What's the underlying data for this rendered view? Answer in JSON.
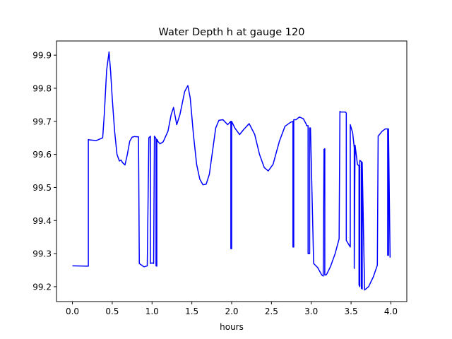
{
  "chart_data": {
    "type": "line",
    "title": "Water Depth h at gauge 120",
    "xlabel": "hours",
    "ylabel": "",
    "xlim": [
      -0.2,
      4.2
    ],
    "ylim": [
      99.155,
      99.943
    ],
    "xticks": [
      0.0,
      0.5,
      1.0,
      1.5,
      2.0,
      2.5,
      3.0,
      3.5,
      4.0
    ],
    "xtick_labels": [
      "0.0",
      "0.5",
      "1.0",
      "1.5",
      "2.0",
      "2.5",
      "3.0",
      "3.5",
      "4.0"
    ],
    "yticks": [
      99.2,
      99.3,
      99.4,
      99.5,
      99.6,
      99.7,
      99.8,
      99.9
    ],
    "ytick_labels": [
      "99.2",
      "99.3",
      "99.4",
      "99.5",
      "99.6",
      "99.7",
      "99.8",
      "99.9"
    ],
    "grid": false,
    "legend": "none",
    "series": [
      {
        "color": "#0000ff",
        "x": [
          0.0,
          0.2,
          0.2,
          0.21,
          0.3,
          0.38,
          0.4,
          0.43,
          0.46,
          0.48,
          0.5,
          0.53,
          0.56,
          0.59,
          0.61,
          0.63,
          0.66,
          0.69,
          0.72,
          0.75,
          0.78,
          0.83,
          0.84,
          0.84,
          0.9,
          0.94,
          0.96,
          0.96,
          0.98,
          0.98,
          1.0,
          1.02,
          1.03,
          1.03,
          1.05,
          1.05,
          1.06,
          1.06,
          1.07,
          1.07,
          1.1,
          1.14,
          1.2,
          1.24,
          1.27,
          1.31,
          1.35,
          1.41,
          1.45,
          1.48,
          1.52,
          1.56,
          1.6,
          1.64,
          1.68,
          1.72,
          1.76,
          1.8,
          1.84,
          1.89,
          1.95,
          1.99,
          1.99,
          2.0,
          2.0,
          2.04,
          2.1,
          2.15,
          2.22,
          2.29,
          2.35,
          2.41,
          2.46,
          2.52,
          2.6,
          2.67,
          2.74,
          2.77,
          2.77,
          2.78,
          2.78,
          2.81,
          2.85,
          2.9,
          2.94,
          2.94,
          2.96,
          2.96,
          2.98,
          2.98,
          2.99,
          3.03,
          3.08,
          3.13,
          3.15,
          3.16,
          3.16,
          3.17,
          3.17,
          3.19,
          3.24,
          3.3,
          3.35,
          3.36,
          3.37,
          3.43,
          3.44,
          3.44,
          3.49,
          3.49,
          3.52,
          3.54,
          3.54,
          3.55,
          3.58,
          3.6,
          3.6,
          3.61,
          3.61,
          3.63,
          3.63,
          3.64,
          3.64,
          3.67,
          3.72,
          3.78,
          3.83,
          3.84,
          3.84,
          3.89,
          3.93,
          3.96,
          3.96,
          3.97,
          3.97,
          3.99
        ],
        "y": [
          99.263,
          99.262,
          99.645,
          99.644,
          99.642,
          99.65,
          99.72,
          99.855,
          99.91,
          99.85,
          99.77,
          99.67,
          99.6,
          99.58,
          99.583,
          99.575,
          99.568,
          99.6,
          99.64,
          99.652,
          99.654,
          99.653,
          99.27,
          99.27,
          99.26,
          99.263,
          99.65,
          99.65,
          99.655,
          99.27,
          99.272,
          99.27,
          99.655,
          99.655,
          99.648,
          99.263,
          99.262,
          99.645,
          99.643,
          99.64,
          99.632,
          99.638,
          99.67,
          99.72,
          99.742,
          99.69,
          99.72,
          99.79,
          99.808,
          99.77,
          99.66,
          99.57,
          99.525,
          99.508,
          99.51,
          99.54,
          99.61,
          99.68,
          99.703,
          99.705,
          99.69,
          99.7,
          99.315,
          99.315,
          99.7,
          99.68,
          99.66,
          99.675,
          99.693,
          99.66,
          99.6,
          99.56,
          99.55,
          99.57,
          99.64,
          99.685,
          99.697,
          99.7,
          99.32,
          99.32,
          99.705,
          99.705,
          99.713,
          99.708,
          99.69,
          99.687,
          99.687,
          99.3,
          99.3,
          99.68,
          99.68,
          99.27,
          99.258,
          99.236,
          99.232,
          99.61,
          99.615,
          99.617,
          99.235,
          99.236,
          99.26,
          99.3,
          99.345,
          99.73,
          99.728,
          99.728,
          99.725,
          99.34,
          99.32,
          99.69,
          99.665,
          99.62,
          99.255,
          99.628,
          99.57,
          99.565,
          99.205,
          99.2,
          99.582,
          99.578,
          99.195,
          99.193,
          99.576,
          99.19,
          99.2,
          99.23,
          99.265,
          99.65,
          99.655,
          99.67,
          99.677,
          99.677,
          99.295,
          99.295,
          99.677,
          99.288
        ]
      }
    ]
  }
}
